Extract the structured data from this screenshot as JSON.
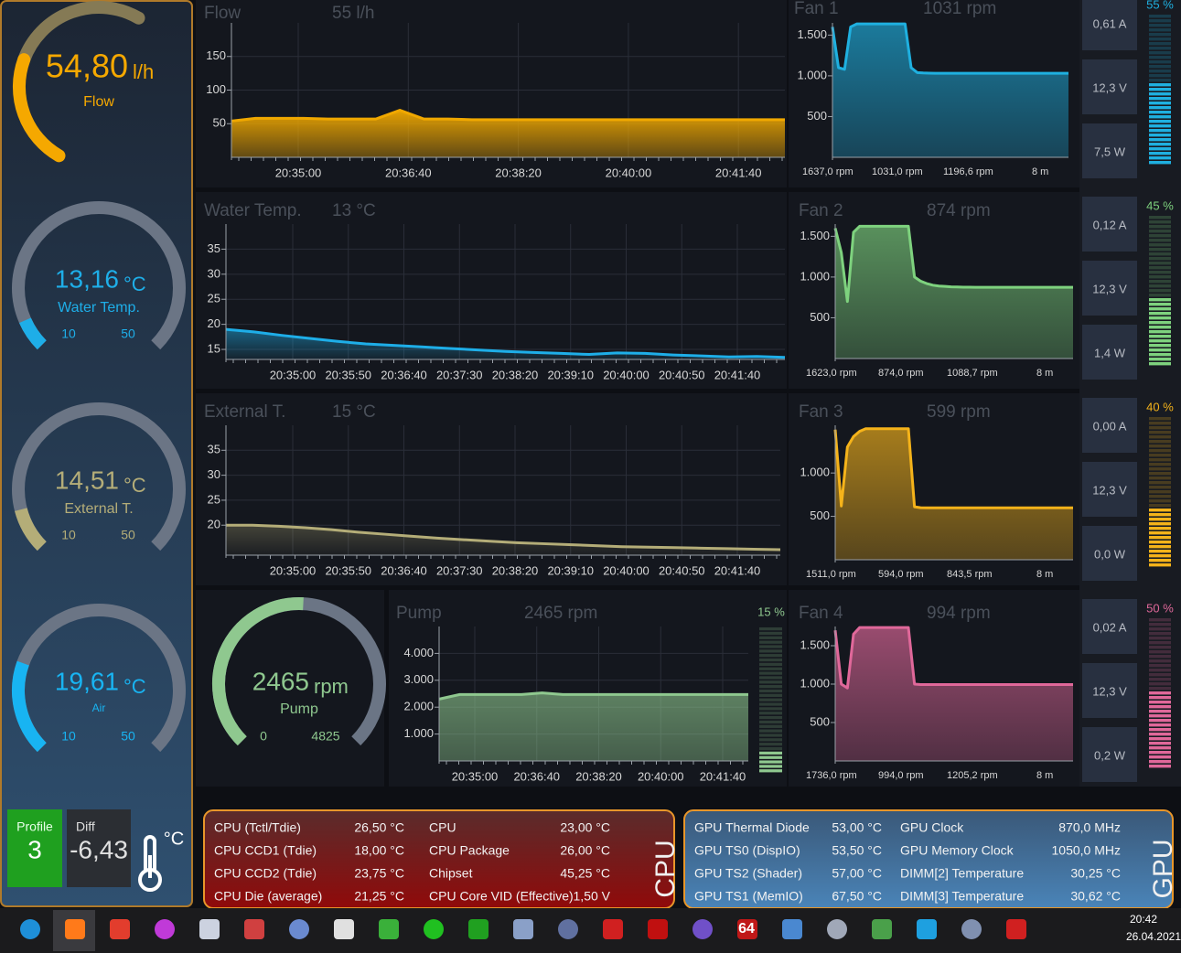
{
  "gauges": [
    {
      "label": "Flow",
      "value": {
        "value": 54.8,
        "label": "54,80"
      },
      "unit": "l/h",
      "color": "#f5a800"
    },
    {
      "label": "Water Temp.",
      "value": {
        "value": 13.16,
        "label": "13,16"
      },
      "unit": "°C",
      "min": 10,
      "max": 50,
      "color": "#1eaee8"
    },
    {
      "label": "External T.",
      "value": {
        "value": 14.51,
        "label": "14,51"
      },
      "unit": "°C",
      "min": 10,
      "max": 50,
      "color": "#b4ad78"
    },
    {
      "label": "Air",
      "value": {
        "value": 19.61,
        "label": "19,61"
      },
      "unit": "°C",
      "min": 10,
      "max": 50,
      "color": "#18b4f2"
    },
    {
      "label": "Pump",
      "value": 2465,
      "unit": "rpm",
      "min": 0,
      "max": 4825,
      "color": "#8fc88f"
    }
  ],
  "charts": [
    {
      "title": "Flow",
      "reading": "55 l/h",
      "color": "#f0a800",
      "ylim": [
        0,
        200
      ],
      "yticks": [
        50,
        100,
        150
      ],
      "xticks": [
        "20:35:00",
        "20:36:40",
        "20:38:20",
        "20:40:00",
        "20:41:40"
      ],
      "values": [
        54,
        58,
        58,
        58,
        57,
        57,
        57,
        70,
        57,
        57,
        56,
        56,
        56,
        56,
        56,
        56,
        56,
        56,
        56,
        56,
        56,
        56,
        56,
        56
      ]
    },
    {
      "title": "Water Temp.",
      "reading": "13 °C",
      "color": "#1eaee8",
      "ylim": [
        13,
        40
      ],
      "yticks": [
        15,
        20,
        25,
        30,
        35
      ],
      "xticks": [
        "20:35:00",
        "20:35:50",
        "20:36:40",
        "20:37:30",
        "20:38:20",
        "20:39:10",
        "20:40:00",
        "20:40:50",
        "20:41:40"
      ],
      "values": [
        19,
        18.5,
        17.8,
        17.2,
        16.6,
        16.1,
        15.8,
        15.5,
        15.2,
        14.9,
        14.6,
        14.4,
        14.2,
        14.0,
        14.3,
        14.2,
        13.9,
        13.7,
        13.5,
        13.6,
        13.4
      ]
    },
    {
      "title": "External T.",
      "reading": "15 °C",
      "color": "#b4ad78",
      "ylim": [
        14,
        40
      ],
      "yticks": [
        20,
        25,
        30,
        35
      ],
      "xticks": [
        "20:35:00",
        "20:35:50",
        "20:36:40",
        "20:37:30",
        "20:38:20",
        "20:39:10",
        "20:40:00",
        "20:40:50",
        "20:41:40"
      ],
      "values": [
        20,
        20,
        19.8,
        19.5,
        19.1,
        18.6,
        18.2,
        17.8,
        17.4,
        17.1,
        16.8,
        16.5,
        16.3,
        16.1,
        15.9,
        15.7,
        15.6,
        15.5,
        15.4,
        15.3,
        15.2,
        15.1
      ]
    },
    {
      "title": "Pump",
      "reading": "2465 rpm",
      "color": "#8fc88f",
      "ylim": [
        0,
        5000
      ],
      "yticks": [
        {
          "value": 1000,
          "label": "1.000"
        },
        {
          "value": 2000,
          "label": "2.000"
        },
        {
          "value": 3000,
          "label": "3.000"
        },
        {
          "value": 4000,
          "label": "4.000"
        }
      ],
      "xticks": [
        "20:35:00",
        "20:36:40",
        "20:38:20",
        "20:40:00",
        "20:41:40"
      ],
      "values": [
        2300,
        2470,
        2470,
        2470,
        2470,
        2530,
        2470,
        2470,
        2470,
        2470,
        2470,
        2470,
        2470,
        2470,
        2470,
        2470
      ],
      "duty": {
        "value": 15,
        "label": "15 %"
      }
    }
  ],
  "fans": [
    {
      "title": "Fan 1",
      "reading": "1031 rpm",
      "color": "#1fb0e0",
      "ylim": [
        0,
        1650
      ],
      "yticks": [
        500,
        {
          "value": 1000,
          "label": "1.000"
        },
        {
          "value": 1500,
          "label": "1.500"
        }
      ],
      "values": [
        1600,
        1100,
        1080,
        1600,
        1637,
        1637,
        1637,
        1637,
        1637,
        1637,
        1637,
        1637,
        1637,
        1100,
        1040,
        1035,
        1033,
        1031,
        1031,
        1031,
        1031,
        1031,
        1031,
        1031,
        1031,
        1031,
        1031,
        1031,
        1031,
        1031,
        1031,
        1031,
        1031,
        1031,
        1031,
        1031,
        1031,
        1031,
        1031,
        1031
      ],
      "stats": [
        "1637,0 rpm",
        "1031,0 rpm",
        "1196,6 rpm",
        "8 m"
      ],
      "current": "0,61 A",
      "voltage": "12,3 V",
      "power": "7,5 W",
      "duty": {
        "value": 55,
        "label": "55 %"
      }
    },
    {
      "title": "Fan 2",
      "reading": "874 rpm",
      "color": "#7ed27e",
      "ylim": [
        0,
        1650
      ],
      "yticks": [
        500,
        {
          "value": 1000,
          "label": "1.000"
        },
        {
          "value": 1500,
          "label": "1.500"
        }
      ],
      "values": [
        1600,
        1300,
        700,
        1550,
        1623,
        1623,
        1623,
        1623,
        1623,
        1623,
        1623,
        1623,
        1623,
        1000,
        950,
        920,
        900,
        890,
        885,
        880,
        878,
        876,
        875,
        874,
        874,
        874,
        874,
        874,
        874,
        874,
        874,
        874,
        874,
        874,
        874,
        874,
        874,
        874,
        874,
        874
      ],
      "stats": [
        "1623,0 rpm",
        "874,0 rpm",
        "1088,7 rpm",
        "8 m"
      ],
      "current": "0,12 A",
      "voltage": "12,3 V",
      "power": "1,4 W",
      "duty": {
        "value": 45,
        "label": "45 %"
      }
    },
    {
      "title": "Fan 3",
      "reading": "599 rpm",
      "color": "#f5b31a",
      "ylim": [
        0,
        1550
      ],
      "yticks": [
        500,
        {
          "value": 1000,
          "label": "1.000"
        }
      ],
      "values": [
        1500,
        620,
        1300,
        1420,
        1480,
        1511,
        1511,
        1511,
        1511,
        1511,
        1511,
        1511,
        1511,
        610,
        600,
        599,
        599,
        599,
        599,
        599,
        599,
        599,
        599,
        599,
        599,
        599,
        599,
        599,
        599,
        599,
        599,
        599,
        599,
        599,
        599,
        599,
        599,
        599,
        599,
        599
      ],
      "stats": [
        "1511,0 rpm",
        "594,0 rpm",
        "843,5 rpm",
        "8 m"
      ],
      "current": "0,00 A",
      "voltage": "12,3 V",
      "power": "0,0 W",
      "duty": {
        "value": 40,
        "label": "40 %"
      }
    },
    {
      "title": "Fan 4",
      "reading": "994 rpm",
      "color": "#e0689a",
      "ylim": [
        0,
        1750
      ],
      "yticks": [
        500,
        {
          "value": 1000,
          "label": "1.000"
        },
        {
          "value": 1500,
          "label": "1.500"
        }
      ],
      "values": [
        1700,
        1000,
        950,
        1650,
        1736,
        1736,
        1736,
        1736,
        1736,
        1736,
        1736,
        1736,
        1736,
        1000,
        994,
        994,
        994,
        994,
        994,
        994,
        994,
        994,
        994,
        994,
        994,
        994,
        994,
        994,
        994,
        994,
        994,
        994,
        994,
        994,
        994,
        994,
        994,
        994,
        994,
        994
      ],
      "stats": [
        "1736,0 rpm",
        "994,0 rpm",
        "1205,2 rpm",
        "8 m"
      ],
      "current": "0,02 A",
      "voltage": "12,3 V",
      "power": "0,2 W",
      "duty": {
        "value": 50,
        "label": "50 %"
      }
    }
  ],
  "profile": {
    "label": "Profile",
    "value": 3
  },
  "diff": {
    "label": "Diff",
    "value": "-6,43",
    "unit": "°C"
  },
  "cpu_panel": {
    "label": "CPU",
    "rows": [
      [
        "CPU (Tctl/Tdie)",
        "26,50 °C",
        "CPU",
        "23,00 °C"
      ],
      [
        "CPU CCD1 (Tdie)",
        "18,00 °C",
        "CPU Package",
        "26,00 °C"
      ],
      [
        "CPU CCD2 (Tdie)",
        "23,75 °C",
        "Chipset",
        "45,25 °C"
      ],
      [
        "CPU Die (average)",
        "21,25 °C",
        "CPU Core VID (Effective)",
        "1,50 V"
      ]
    ]
  },
  "gpu_panel": {
    "label": "GPU",
    "rows": [
      [
        "GPU Thermal Diode",
        "53,00 °C",
        "GPU Clock",
        "870,0 MHz"
      ],
      [
        "GPU TS0 (DispIO)",
        "53,50 °C",
        "GPU Memory Clock",
        "1050,0 MHz"
      ],
      [
        "GPU TS2 (Shader)",
        "57,00 °C",
        "DIMM[2] Temperature",
        "30,25 °C"
      ],
      [
        "GPU TS1 (MemIO)",
        "67,50 °C",
        "DIMM[3] Temperature",
        "30,62 °C"
      ]
    ]
  },
  "taskbar": {
    "badge": "64",
    "time": "20:42",
    "date": "26.04.2021"
  }
}
